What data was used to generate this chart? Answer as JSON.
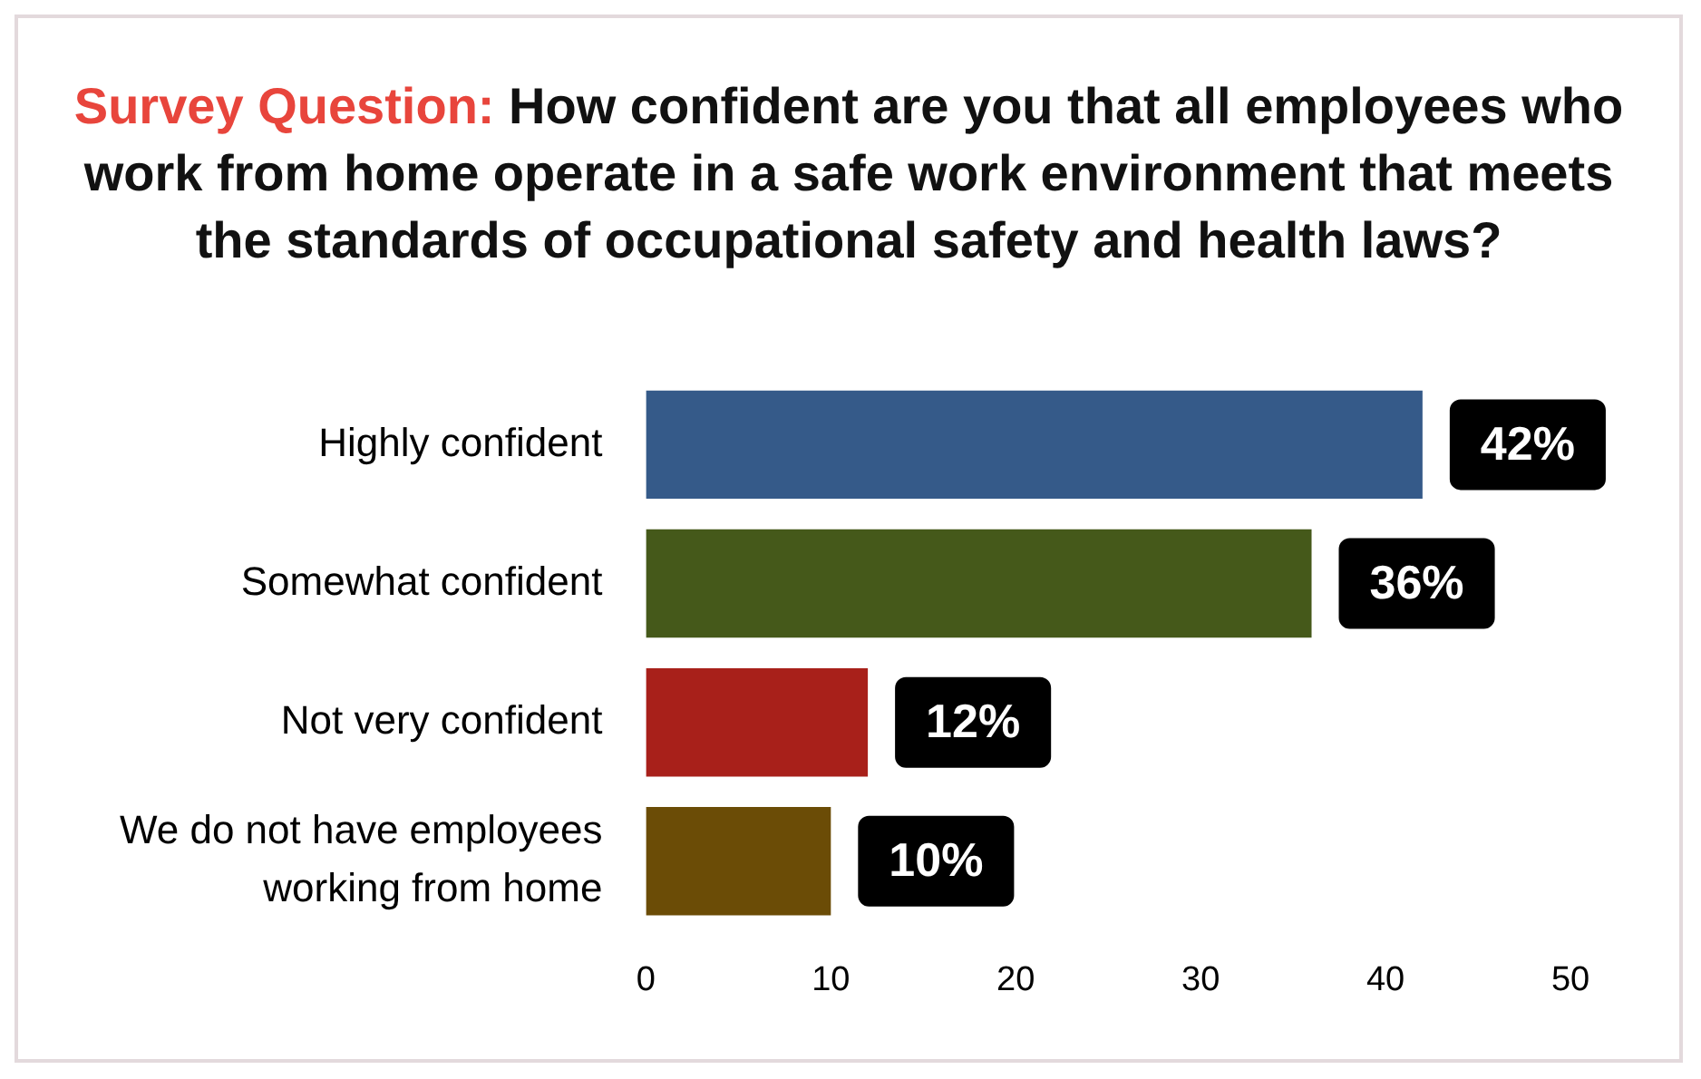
{
  "chart_data": {
    "type": "bar",
    "orientation": "horizontal",
    "title": "Survey Question: How confident are you that all employees who work from home operate in a safe work environment that meets the standards of occupational safety and health laws?",
    "categories": [
      "Highly confident",
      "Somewhat confident",
      "Not very confident",
      "We do not have employees working from home"
    ],
    "values": [
      42,
      36,
      12,
      10
    ],
    "colors": [
      "#355a89",
      "#45591a",
      "#a8201a",
      "#6b4c06"
    ],
    "value_labels": [
      "42%",
      "36%",
      "12%",
      "10%"
    ],
    "xlim": [
      0,
      50
    ],
    "xticks": [
      0,
      10,
      20,
      30,
      40,
      50
    ],
    "grid": false,
    "legend": false
  }
}
